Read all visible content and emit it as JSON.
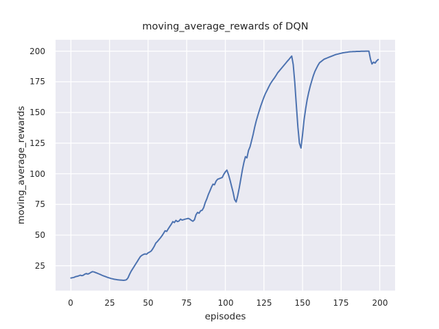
{
  "chart_data": {
    "type": "line",
    "title": "moving_average_rewards of DQN",
    "xlabel": "episodes",
    "ylabel": "moving_average_rewards",
    "x_ticks": [
      0,
      25,
      50,
      75,
      100,
      125,
      150,
      175,
      200
    ],
    "y_ticks": [
      25,
      50,
      75,
      100,
      125,
      150,
      175,
      200
    ],
    "xlim": [
      -9.95,
      209.95
    ],
    "ylim": [
      4.7,
      209.3
    ],
    "grid": true,
    "legend_position": "none",
    "colors": {
      "line": "#4c72b0",
      "plot_background": "#eaeaf2",
      "gridline": "#ffffff",
      "figure_background": "#ffffff",
      "text": "#262626"
    },
    "series": [
      {
        "name": "moving_average_rewards",
        "x_is_episode_index": true,
        "values": [
          15.0,
          15.2,
          15.5,
          16.1,
          16.4,
          16.7,
          17.3,
          16.9,
          17.2,
          18.2,
          18.7,
          18.2,
          18.8,
          19.6,
          20.2,
          19.9,
          19.4,
          18.9,
          18.4,
          17.9,
          17.3,
          16.8,
          16.3,
          15.8,
          15.4,
          15.0,
          14.6,
          14.3,
          14.0,
          13.8,
          13.6,
          13.4,
          13.3,
          13.2,
          13.1,
          13.2,
          13.6,
          15.2,
          18.0,
          20.5,
          22.5,
          24.5,
          26.5,
          28.5,
          30.5,
          32.5,
          33.5,
          34.2,
          34.6,
          34.4,
          35.5,
          36.2,
          37.0,
          38.8,
          41.0,
          43.5,
          44.8,
          46.3,
          47.8,
          49.5,
          51.5,
          53.5,
          53.0,
          55.0,
          57.0,
          58.8,
          61.0,
          60.2,
          62.0,
          61.0,
          61.5,
          63.0,
          62.2,
          62.6,
          63.0,
          63.3,
          63.6,
          63.0,
          62.0,
          61.3,
          62.5,
          66.5,
          68.5,
          67.8,
          69.8,
          70.2,
          72.5,
          76.5,
          79.5,
          83.0,
          86.0,
          89.0,
          91.5,
          91.0,
          94.0,
          95.5,
          96.0,
          96.5,
          97.0,
          99.5,
          101.5,
          103.0,
          99.5,
          95.0,
          90.0,
          85.0,
          79.0,
          77.0,
          82.0,
          88.5,
          95.5,
          103.0,
          109.0,
          114.0,
          113.0,
          119.0,
          122.0,
          127.0,
          132.0,
          138.0,
          143.0,
          147.5,
          151.5,
          155.5,
          159.0,
          162.5,
          165.5,
          168.0,
          170.5,
          173.0,
          175.0,
          176.8,
          178.5,
          180.5,
          182.5,
          184.0,
          185.5,
          187.0,
          188.5,
          190.0,
          191.5,
          193.0,
          194.5,
          196.0,
          189.0,
          174.0,
          156.0,
          138.0,
          125.0,
          121.0,
          132.0,
          144.0,
          153.0,
          160.5,
          166.5,
          171.5,
          176.0,
          180.0,
          183.5,
          186.0,
          188.5,
          190.5,
          191.5,
          192.5,
          193.5,
          194.0,
          194.5,
          195.0,
          195.5,
          196.0,
          196.5,
          197.0,
          197.4,
          197.7,
          198.0,
          198.3,
          198.6,
          198.8,
          199.0,
          199.2,
          199.4,
          199.5,
          199.6,
          199.7,
          199.7,
          199.8,
          199.8,
          199.8,
          199.9,
          199.9,
          199.9,
          200.0,
          200.0,
          200.0,
          193.5,
          189.5,
          191.0,
          190.3,
          192.0,
          193.2
        ]
      }
    ]
  }
}
